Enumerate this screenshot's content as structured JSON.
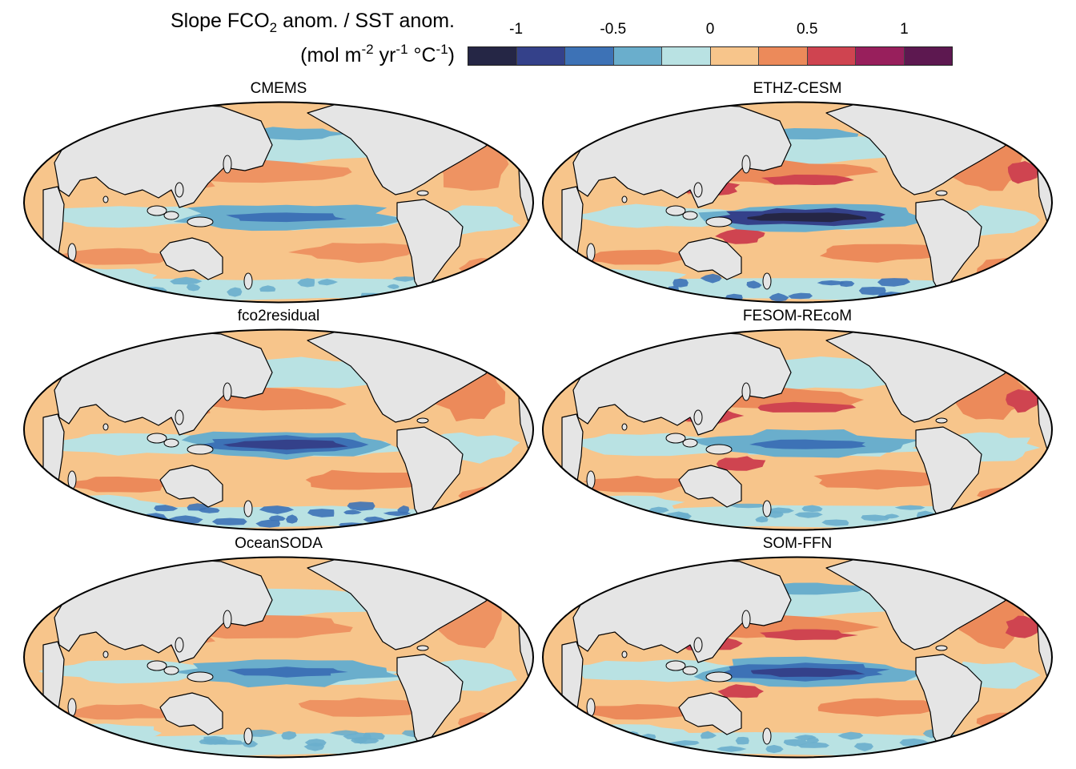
{
  "title": {
    "line1_pre": "Slope FCO",
    "line1_sub": "2",
    "line1_post": " anom. / SST anom.",
    "line2_a": "(mol m",
    "line2_sup1": "-2",
    "line2_b": " yr",
    "line2_sup2": "-1",
    "line2_c": " °C",
    "line2_sup3": "-1",
    "line2_d": ")"
  },
  "colorbar": {
    "ticks": [
      "-1",
      "-0.5",
      "0",
      "0.5",
      "1"
    ],
    "tick_values": [
      -1,
      -0.5,
      0,
      0.5,
      1
    ],
    "range": [
      -1.25,
      1.25
    ],
    "colors": [
      "#252645",
      "#34418a",
      "#3d72b6",
      "#6aaecc",
      "#b9e2e3",
      "#f7c58b",
      "#ec8a5a",
      "#cf4450",
      "#981f5c",
      "#5d1850"
    ]
  },
  "colors": {
    "land": "#e5e5e5",
    "coast": "#000000"
  },
  "panels": [
    {
      "title": "CMEMS",
      "variant": 0
    },
    {
      "title": "ETHZ-CESM",
      "variant": 1
    },
    {
      "title": "fco2residual",
      "variant": 2
    },
    {
      "title": "FESOM-REcoM",
      "variant": 3
    },
    {
      "title": "OceanSODA",
      "variant": 4
    },
    {
      "title": "SOM-FFN",
      "variant": 5
    }
  ]
}
